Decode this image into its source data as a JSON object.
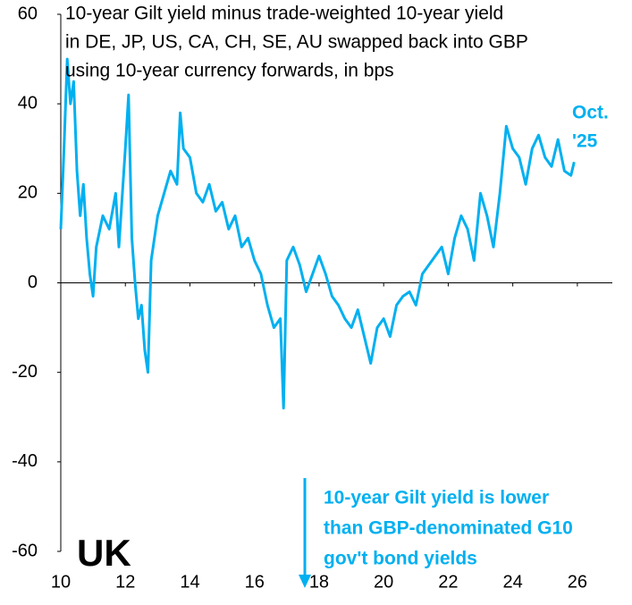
{
  "chart_data": {
    "type": "line",
    "title": [
      "10-year Gilt yield minus trade-weighted 10-year yield",
      "in DE, JP, US, CA, CH, SE, AU swapped back into GBP",
      "using 10-year currency forwards, in bps"
    ],
    "annotation": [
      "Oct.",
      "'25"
    ],
    "note": [
      "10-year Gilt yield is lower",
      "than GBP-denominated G10",
      "gov't bond yields"
    ],
    "label": "UK",
    "x": [
      10.0,
      10.1,
      10.2,
      10.3,
      10.4,
      10.5,
      10.6,
      10.7,
      10.8,
      10.9,
      11.0,
      11.1,
      11.3,
      11.5,
      11.7,
      11.8,
      12.0,
      12.1,
      12.2,
      12.3,
      12.4,
      12.5,
      12.6,
      12.7,
      12.8,
      13.0,
      13.2,
      13.4,
      13.6,
      13.7,
      13.8,
      14.0,
      14.2,
      14.4,
      14.6,
      14.8,
      15.0,
      15.2,
      15.4,
      15.6,
      15.8,
      16.0,
      16.2,
      16.4,
      16.6,
      16.8,
      16.9,
      17.0,
      17.2,
      17.4,
      17.6,
      17.8,
      18.0,
      18.2,
      18.4,
      18.6,
      18.8,
      19.0,
      19.2,
      19.4,
      19.6,
      19.8,
      20.0,
      20.2,
      20.4,
      20.6,
      20.8,
      21.0,
      21.2,
      21.4,
      21.6,
      21.8,
      22.0,
      22.2,
      22.4,
      22.6,
      22.8,
      23.0,
      23.2,
      23.4,
      23.6,
      23.8,
      24.0,
      24.2,
      24.4,
      24.6,
      24.8,
      25.0,
      25.2,
      25.4,
      25.6,
      25.8,
      25.9
    ],
    "series": [
      {
        "name": "UK",
        "color": "#00b0f0",
        "values": [
          12,
          30,
          50,
          40,
          45,
          25,
          15,
          22,
          10,
          2,
          -3,
          8,
          15,
          12,
          20,
          8,
          30,
          42,
          10,
          0,
          -8,
          -5,
          -15,
          -20,
          5,
          15,
          20,
          25,
          22,
          38,
          30,
          28,
          20,
          18,
          22,
          16,
          18,
          12,
          15,
          8,
          10,
          5,
          2,
          -5,
          -10,
          -8,
          -28,
          5,
          8,
          4,
          -2,
          2,
          6,
          2,
          -3,
          -5,
          -8,
          -10,
          -6,
          -12,
          -18,
          -10,
          -8,
          -12,
          -5,
          -3,
          -2,
          -5,
          2,
          4,
          6,
          8,
          2,
          10,
          15,
          12,
          5,
          20,
          15,
          8,
          20,
          35,
          30,
          28,
          22,
          30,
          33,
          28,
          26,
          32,
          25,
          24,
          27
        ]
      }
    ],
    "xlim": [
      10,
      27
    ],
    "xticks": [
      10,
      12,
      14,
      16,
      18,
      20,
      22,
      24,
      26
    ],
    "ylim": [
      -60,
      60
    ],
    "yticks": [
      -60,
      -40,
      -20,
      0,
      20,
      40,
      60
    ]
  }
}
